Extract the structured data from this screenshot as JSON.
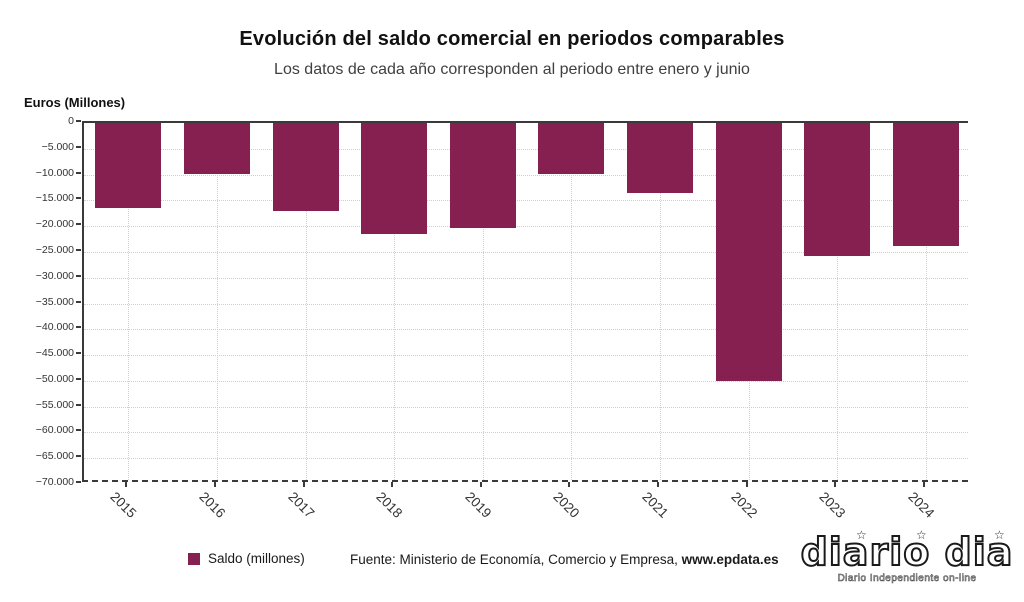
{
  "header": {
    "title": "Evolución del saldo comercial en periodos comparables",
    "subtitle": "Los datos de cada año corresponden al periodo entre enero y junio"
  },
  "axis": {
    "y_title": "Euros (Millones)"
  },
  "legend": {
    "label": "Saldo (millones)"
  },
  "source": {
    "prefix": "Fuente: Ministerio de Economía, Comercio y Empresa, ",
    "site": "www.epdata.es"
  },
  "watermark": {
    "logo": "diario dia",
    "tagline": "Diario Independiente on-line"
  },
  "colors": {
    "bar": "#852050",
    "grid": "#d9c9d4",
    "spine": "#3a3a3a"
  },
  "chart_data": {
    "type": "bar",
    "title": "Evolución del saldo comercial en periodos comparables",
    "subtitle": "Los datos de cada año corresponden al periodo entre enero y junio",
    "ylabel": "Euros (Millones)",
    "xlabel": "",
    "categories": [
      "2015",
      "2016",
      "2017",
      "2018",
      "2019",
      "2020",
      "2021",
      "2022",
      "2023",
      "2024"
    ],
    "series": [
      {
        "name": "Saldo (millones)",
        "values": [
          -16400,
          -9900,
          -17000,
          -21600,
          -20300,
          -9800,
          -13600,
          -50000,
          -25700,
          -23800
        ]
      }
    ],
    "ylim": [
      -70000,
      0
    ],
    "ytick_step": 5000,
    "ytick_labels": [
      "0",
      "−5.000",
      "−10.000",
      "−15.000",
      "−20.000",
      "−25.000",
      "−30.000",
      "−35.000",
      "−40.000",
      "−45.000",
      "−50.000",
      "−55.000",
      "−60.000",
      "−65.000",
      "−70.000"
    ],
    "grid": true,
    "grid_style": "dotted",
    "legend_position": "bottom-left",
    "bar_color": "#852050"
  }
}
